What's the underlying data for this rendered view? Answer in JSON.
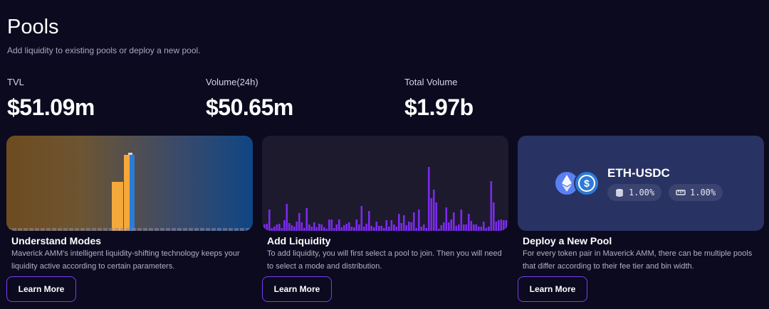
{
  "header": {
    "title": "Pools",
    "subtitle": "Add liquidity to existing pools or deploy a new pool."
  },
  "stats": {
    "tvl_label": "TVL",
    "tvl_value": "$51.09m",
    "volume24_label": "Volume(24h)",
    "volume24_value": "$50.65m",
    "total_label": "Total Volume",
    "total_value": "$1.97b"
  },
  "cards": [
    {
      "title": "Understand Modes",
      "description": "Maverick AMM's intelligent liquidity-shifting technology keeps your liquidity active according to certain parameters.",
      "button": "Learn More"
    },
    {
      "title": "Add Liquidity",
      "description": "To add liquidity, you will first select a pool to join. Then you will need to select a mode and distribution.",
      "button": "Learn More"
    },
    {
      "title": "Deploy a New Pool",
      "description": "For every token pair in Maverick AMM, there can be multiple pools that differ according to their fee tier and bin width.",
      "button": "Learn More"
    }
  ],
  "deploy_pool": {
    "pair": "ETH-USDC",
    "fee_tier": "1.00%",
    "bin_width": "1.00%",
    "icons": [
      "eth-icon",
      "usdc-icon",
      "coins-icon",
      "ruler-icon"
    ]
  },
  "colors": {
    "background": "#0c0a1e",
    "accent": "#7a3df0",
    "bar_purple": "#7c2af0",
    "bar_orange": "#f4a93a",
    "bar_blue": "#2f7ad6"
  }
}
